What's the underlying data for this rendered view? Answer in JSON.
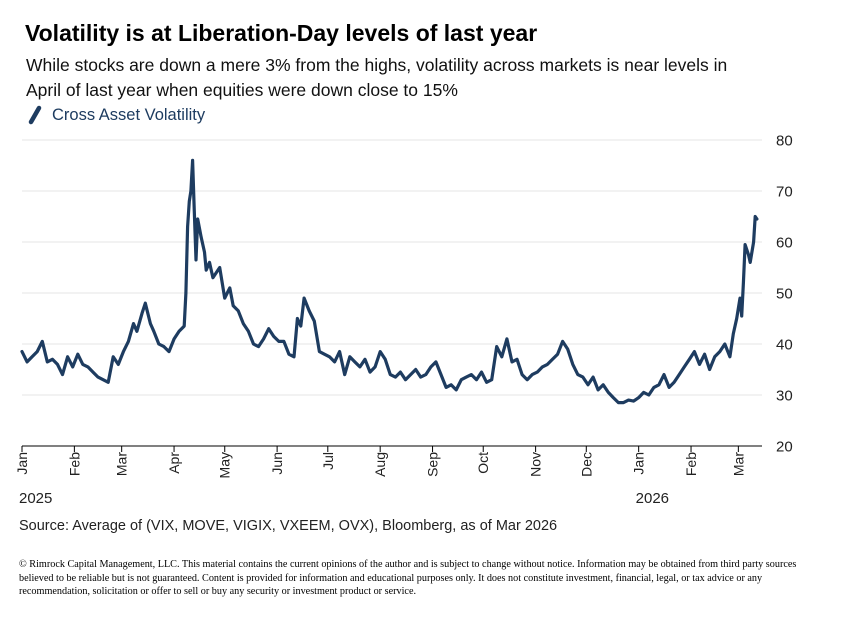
{
  "header": {
    "title": "Volatility is at Liberation-Day levels of last year",
    "subtitle": "While stocks are down a mere 3% from the highs, volatility across markets is near levels in April of last year when equities were down close to 15%"
  },
  "legend": {
    "label": "Cross Asset Volatility",
    "icon": "line-series-swatch"
  },
  "colors": {
    "series": "#1e3c60",
    "grid": "#e6e6e6",
    "axis": "#000000",
    "text": "#222222"
  },
  "footer": {
    "source": "Source:  Average of (VIX, MOVE, VIGIX, VXEEM, OVX), Bloomberg, as of Mar 2026",
    "disclaimer": "© Rimrock Capital Management, LLC.  This material contains the current opinions of the author and is subject to change without notice.  Information may be obtained from third party sources believed to be reliable but is not guaranteed.  Content is provided for information and educational purposes only. It does not constitute investment, financial, legal, or tax advice or any recommendation, solicitation or offer to sell or buy any security or investment product or service."
  },
  "chart_data": {
    "type": "line",
    "title": "Volatility is at Liberation-Day levels of last year",
    "xlabel": "",
    "ylabel": "",
    "ylim": [
      20,
      80
    ],
    "yticks": [
      20,
      30,
      40,
      50,
      60,
      70,
      80
    ],
    "y_axis_position": "right",
    "grid": "horizontal",
    "legend_position": "top-left",
    "xlim": [
      "2025-01-01",
      "2026-03-15"
    ],
    "x_ticks": [
      {
        "date": "2025-01-01",
        "label": "Jan"
      },
      {
        "date": "2025-02-01",
        "label": "Feb"
      },
      {
        "date": "2025-03-01",
        "label": "Mar"
      },
      {
        "date": "2025-04-01",
        "label": "Apr"
      },
      {
        "date": "2025-05-01",
        "label": "May"
      },
      {
        "date": "2025-06-01",
        "label": "Jun"
      },
      {
        "date": "2025-07-01",
        "label": "Jul"
      },
      {
        "date": "2025-08-01",
        "label": "Aug"
      },
      {
        "date": "2025-09-01",
        "label": "Sep"
      },
      {
        "date": "2025-10-01",
        "label": "Oct"
      },
      {
        "date": "2025-11-01",
        "label": "Nov"
      },
      {
        "date": "2025-12-01",
        "label": "Dec"
      },
      {
        "date": "2026-01-01",
        "label": "Jan"
      },
      {
        "date": "2026-02-01",
        "label": "Feb"
      },
      {
        "date": "2026-03-01",
        "label": "Mar"
      }
    ],
    "year_labels": [
      {
        "date": "2025-01-01",
        "label": "2025"
      },
      {
        "date": "2026-01-01",
        "label": "2026"
      }
    ],
    "series": [
      {
        "name": "Cross Asset Volatility",
        "points": [
          [
            "2025-01-01",
            38.5
          ],
          [
            "2025-01-04",
            36.5
          ],
          [
            "2025-01-07",
            37.5
          ],
          [
            "2025-01-10",
            38.5
          ],
          [
            "2025-01-13",
            40.5
          ],
          [
            "2025-01-16",
            36.5
          ],
          [
            "2025-01-19",
            37
          ],
          [
            "2025-01-22",
            36
          ],
          [
            "2025-01-25",
            34
          ],
          [
            "2025-01-28",
            37.5
          ],
          [
            "2025-01-31",
            35.5
          ],
          [
            "2025-02-03",
            38
          ],
          [
            "2025-02-06",
            36
          ],
          [
            "2025-02-09",
            35.5
          ],
          [
            "2025-02-12",
            34.5
          ],
          [
            "2025-02-15",
            33.5
          ],
          [
            "2025-02-18",
            33
          ],
          [
            "2025-02-21",
            32.5
          ],
          [
            "2025-02-24",
            37.5
          ],
          [
            "2025-02-27",
            36
          ],
          [
            "2025-03-02",
            38.5
          ],
          [
            "2025-03-05",
            40.5
          ],
          [
            "2025-03-08",
            44
          ],
          [
            "2025-03-10",
            42.5
          ],
          [
            "2025-03-13",
            46
          ],
          [
            "2025-03-15",
            48
          ],
          [
            "2025-03-18",
            44
          ],
          [
            "2025-03-20",
            42.5
          ],
          [
            "2025-03-23",
            40
          ],
          [
            "2025-03-26",
            39.5
          ],
          [
            "2025-03-29",
            38.5
          ],
          [
            "2025-04-01",
            41
          ],
          [
            "2025-04-04",
            42.5
          ],
          [
            "2025-04-07",
            43.5
          ],
          [
            "2025-04-08",
            50
          ],
          [
            "2025-04-09",
            63
          ],
          [
            "2025-04-10",
            68
          ],
          [
            "2025-04-11",
            70
          ],
          [
            "2025-04-12",
            76
          ],
          [
            "2025-04-13",
            66
          ],
          [
            "2025-04-14",
            56.5
          ],
          [
            "2025-04-15",
            64.5
          ],
          [
            "2025-04-17",
            61
          ],
          [
            "2025-04-19",
            58
          ],
          [
            "2025-04-20",
            54.5
          ],
          [
            "2025-04-22",
            56
          ],
          [
            "2025-04-24",
            53
          ],
          [
            "2025-04-26",
            54
          ],
          [
            "2025-04-28",
            55
          ],
          [
            "2025-05-01",
            49
          ],
          [
            "2025-05-04",
            51
          ],
          [
            "2025-05-06",
            47.5
          ],
          [
            "2025-05-09",
            46.5
          ],
          [
            "2025-05-12",
            44
          ],
          [
            "2025-05-15",
            42.5
          ],
          [
            "2025-05-18",
            40
          ],
          [
            "2025-05-21",
            39.5
          ],
          [
            "2025-05-24",
            41
          ],
          [
            "2025-05-27",
            43
          ],
          [
            "2025-05-30",
            41.5
          ],
          [
            "2025-06-02",
            40.5
          ],
          [
            "2025-06-05",
            40.5
          ],
          [
            "2025-06-08",
            38
          ],
          [
            "2025-06-11",
            37.5
          ],
          [
            "2025-06-13",
            45
          ],
          [
            "2025-06-15",
            43.5
          ],
          [
            "2025-06-17",
            49
          ],
          [
            "2025-06-20",
            46.5
          ],
          [
            "2025-06-23",
            44.5
          ],
          [
            "2025-06-26",
            38.5
          ],
          [
            "2025-06-29",
            38
          ],
          [
            "2025-07-02",
            37.5
          ],
          [
            "2025-07-05",
            36.5
          ],
          [
            "2025-07-08",
            38.5
          ],
          [
            "2025-07-11",
            34
          ],
          [
            "2025-07-14",
            37.5
          ],
          [
            "2025-07-17",
            36.5
          ],
          [
            "2025-07-20",
            35.5
          ],
          [
            "2025-07-23",
            37
          ],
          [
            "2025-07-26",
            34.5
          ],
          [
            "2025-07-29",
            35.5
          ],
          [
            "2025-08-01",
            38.5
          ],
          [
            "2025-08-04",
            37
          ],
          [
            "2025-08-07",
            34
          ],
          [
            "2025-08-10",
            33.5
          ],
          [
            "2025-08-13",
            34.5
          ],
          [
            "2025-08-16",
            33
          ],
          [
            "2025-08-19",
            34
          ],
          [
            "2025-08-22",
            35
          ],
          [
            "2025-08-25",
            33.5
          ],
          [
            "2025-08-28",
            34
          ],
          [
            "2025-08-31",
            35.5
          ],
          [
            "2025-09-03",
            36.5
          ],
          [
            "2025-09-06",
            34
          ],
          [
            "2025-09-09",
            31.5
          ],
          [
            "2025-09-12",
            32
          ],
          [
            "2025-09-15",
            31
          ],
          [
            "2025-09-18",
            33
          ],
          [
            "2025-09-21",
            33.5
          ],
          [
            "2025-09-24",
            34
          ],
          [
            "2025-09-27",
            33
          ],
          [
            "2025-09-30",
            34.5
          ],
          [
            "2025-10-03",
            32.5
          ],
          [
            "2025-10-06",
            33
          ],
          [
            "2025-10-09",
            39.5
          ],
          [
            "2025-10-12",
            37.5
          ],
          [
            "2025-10-15",
            41
          ],
          [
            "2025-10-18",
            36.5
          ],
          [
            "2025-10-21",
            37
          ],
          [
            "2025-10-24",
            34
          ],
          [
            "2025-10-27",
            33
          ],
          [
            "2025-10-30",
            34
          ],
          [
            "2025-11-02",
            34.5
          ],
          [
            "2025-11-05",
            35.5
          ],
          [
            "2025-11-08",
            36
          ],
          [
            "2025-11-11",
            37
          ],
          [
            "2025-11-14",
            38
          ],
          [
            "2025-11-17",
            40.5
          ],
          [
            "2025-11-20",
            39
          ],
          [
            "2025-11-23",
            36
          ],
          [
            "2025-11-26",
            34
          ],
          [
            "2025-11-29",
            33.5
          ],
          [
            "2025-12-02",
            32
          ],
          [
            "2025-12-05",
            33.5
          ],
          [
            "2025-12-08",
            31
          ],
          [
            "2025-12-11",
            32
          ],
          [
            "2025-12-14",
            30.5
          ],
          [
            "2025-12-17",
            29.5
          ],
          [
            "2025-12-20",
            28.5
          ],
          [
            "2025-12-23",
            28.5
          ],
          [
            "2025-12-26",
            29
          ],
          [
            "2025-12-29",
            28.8
          ],
          [
            "2026-01-01",
            29.5
          ],
          [
            "2026-01-04",
            30.5
          ],
          [
            "2026-01-07",
            30
          ],
          [
            "2026-01-10",
            31.5
          ],
          [
            "2026-01-13",
            32
          ],
          [
            "2026-01-16",
            34
          ],
          [
            "2026-01-19",
            31.5
          ],
          [
            "2026-01-22",
            32.5
          ],
          [
            "2026-01-25",
            34
          ],
          [
            "2026-01-28",
            35.5
          ],
          [
            "2026-01-31",
            37
          ],
          [
            "2026-02-03",
            38.5
          ],
          [
            "2026-02-06",
            36
          ],
          [
            "2026-02-09",
            38
          ],
          [
            "2026-02-12",
            35
          ],
          [
            "2026-02-15",
            37.5
          ],
          [
            "2026-02-18",
            38.5
          ],
          [
            "2026-02-21",
            40
          ],
          [
            "2026-02-24",
            37.5
          ],
          [
            "2026-02-26",
            42
          ],
          [
            "2026-02-28",
            45
          ],
          [
            "2026-03-02",
            49
          ],
          [
            "2026-03-03",
            45.5
          ],
          [
            "2026-03-04",
            52
          ],
          [
            "2026-03-05",
            59.5
          ],
          [
            "2026-03-07",
            57.5
          ],
          [
            "2026-03-08",
            56
          ],
          [
            "2026-03-10",
            60
          ],
          [
            "2026-03-11",
            65
          ],
          [
            "2026-03-12",
            64.5
          ]
        ]
      }
    ]
  }
}
